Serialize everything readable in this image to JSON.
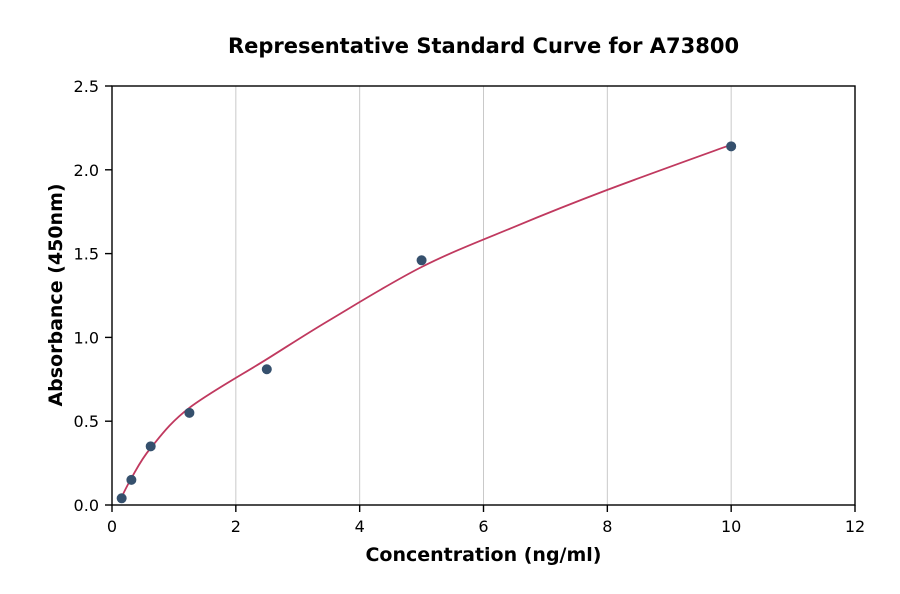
{
  "title": "Representative Standard Curve for A73800",
  "chart_data": {
    "type": "scatter",
    "title": "Representative Standard Curve for A73800",
    "xlabel": "Concentration (ng/ml)",
    "ylabel": "Absorbance (450nm)",
    "xlim": [
      0,
      12
    ],
    "ylim": [
      0,
      2.5
    ],
    "xticks": [
      0,
      2,
      4,
      6,
      8,
      10,
      12
    ],
    "yticks": [
      0.0,
      0.5,
      1.0,
      1.5,
      2.0,
      2.5
    ],
    "grid": "vertical-only",
    "legend": "none",
    "points": [
      {
        "x": 0.156,
        "y": 0.04
      },
      {
        "x": 0.313,
        "y": 0.15
      },
      {
        "x": 0.625,
        "y": 0.35
      },
      {
        "x": 1.25,
        "y": 0.55
      },
      {
        "x": 2.5,
        "y": 0.81
      },
      {
        "x": 5.0,
        "y": 1.46
      },
      {
        "x": 10.0,
        "y": 2.14
      }
    ],
    "fit_curve": [
      [
        0.12,
        0.02
      ],
      [
        0.313,
        0.16
      ],
      [
        0.625,
        0.34
      ],
      [
        1.25,
        0.58
      ],
      [
        2.5,
        0.87
      ],
      [
        3.5,
        1.1
      ],
      [
        5.0,
        1.42
      ],
      [
        6.5,
        1.66
      ],
      [
        8.0,
        1.88
      ],
      [
        10.0,
        2.15
      ]
    ],
    "point_color": "#35506d",
    "curve_color": "#c0395f",
    "grid_color": "#c9c9c9",
    "axis_color": "#000000"
  }
}
